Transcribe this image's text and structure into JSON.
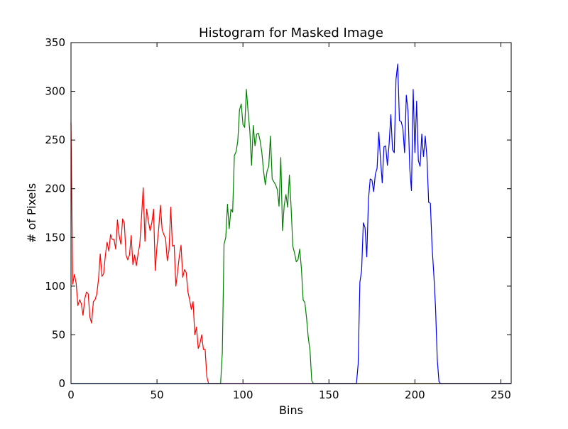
{
  "chart_data": {
    "type": "line",
    "title": "Histogram for Masked Image",
    "xlabel": "Bins",
    "ylabel": "# of Pixels",
    "xlim": [
      0,
      256
    ],
    "ylim": [
      0,
      350
    ],
    "xticks": [
      0,
      50,
      100,
      150,
      200,
      250
    ],
    "yticks": [
      0,
      50,
      100,
      150,
      200,
      250,
      300,
      350
    ],
    "grid": false,
    "series": [
      {
        "color": "#ff0000",
        "x": [
          0,
          1,
          2,
          3,
          4,
          5,
          6,
          7,
          8,
          9,
          10,
          11,
          12,
          13,
          14,
          15,
          16,
          17,
          18,
          19,
          20,
          21,
          22,
          23,
          24,
          25,
          26,
          27,
          28,
          29,
          30,
          31,
          32,
          33,
          34,
          35,
          36,
          37,
          38,
          39,
          40,
          41,
          42,
          43,
          44,
          45,
          46,
          47,
          48,
          49,
          50,
          51,
          52,
          53,
          54,
          55,
          56,
          57,
          58,
          59,
          60,
          61,
          62,
          63,
          64,
          65,
          66,
          67,
          68,
          69,
          70,
          71,
          72,
          73,
          74,
          75,
          76,
          77,
          78,
          79,
          80,
          81,
          82,
          83,
          86,
          90,
          100,
          150,
          200,
          256
        ],
        "values": [
          268,
          102,
          112,
          103,
          80,
          86,
          82,
          70,
          87,
          94,
          92,
          68,
          62,
          84,
          86,
          92,
          107,
          133,
          110,
          113,
          132,
          145,
          136,
          153,
          148,
          148,
          138,
          168,
          152,
          143,
          169,
          165,
          132,
          127,
          132,
          152,
          122,
          132,
          121,
          133,
          143,
          171,
          201,
          146,
          179,
          167,
          157,
          165,
          179,
          116,
          141,
          159,
          183,
          158,
          153,
          149,
          126,
          137,
          181,
          141,
          142,
          100,
          115,
          131,
          142,
          109,
          117,
          114,
          94,
          86,
          76,
          84,
          50,
          58,
          36,
          41,
          50,
          35,
          35,
          7,
          0,
          0,
          0,
          0,
          0,
          0,
          0,
          0,
          0,
          0
        ]
      },
      {
        "color": "#008000",
        "x": [
          0,
          50,
          84,
          86,
          87,
          88,
          89,
          90,
          91,
          92,
          93,
          94,
          95,
          96,
          97,
          98,
          99,
          100,
          101,
          102,
          103,
          104,
          105,
          106,
          107,
          108,
          109,
          110,
          111,
          112,
          113,
          114,
          115,
          116,
          117,
          118,
          119,
          120,
          121,
          122,
          123,
          124,
          125,
          126,
          127,
          128,
          129,
          130,
          131,
          132,
          133,
          134,
          135,
          136,
          137,
          138,
          139,
          140,
          141,
          142,
          143,
          150,
          200,
          256
        ],
        "values": [
          0,
          0,
          0,
          0,
          0,
          32,
          143,
          150,
          184,
          159,
          179,
          176,
          234,
          238,
          249,
          281,
          287,
          266,
          263,
          302,
          279,
          259,
          224,
          265,
          244,
          256,
          257,
          249,
          237,
          218,
          204,
          218,
          223,
          254,
          210,
          207,
          204,
          199,
          182,
          232,
          157,
          183,
          194,
          181,
          214,
          181,
          141,
          134,
          125,
          127,
          138,
          118,
          86,
          83,
          67,
          47,
          34,
          3,
          0,
          0,
          0,
          0,
          0,
          0
        ]
      },
      {
        "color": "#0000ff",
        "x": [
          0,
          100,
          150,
          163,
          165,
          166,
          167,
          168,
          169,
          170,
          171,
          172,
          173,
          174,
          175,
          176,
          177,
          178,
          179,
          180,
          181,
          182,
          183,
          184,
          185,
          186,
          187,
          188,
          189,
          190,
          191,
          192,
          193,
          194,
          195,
          196,
          197,
          198,
          199,
          200,
          201,
          202,
          203,
          204,
          205,
          206,
          207,
          208,
          209,
          210,
          211,
          212,
          213,
          214,
          215,
          220,
          256
        ],
        "values": [
          0,
          0,
          0,
          0,
          0,
          0,
          20,
          104,
          116,
          165,
          160,
          130,
          189,
          210,
          209,
          197,
          215,
          221,
          258,
          230,
          206,
          243,
          244,
          224,
          246,
          276,
          240,
          237,
          312,
          328,
          270,
          269,
          262,
          237,
          296,
          280,
          221,
          198,
          302,
          237,
          290,
          229,
          223,
          256,
          233,
          254,
          232,
          186,
          185,
          140,
          112,
          78,
          25,
          2,
          0,
          0,
          0
        ]
      }
    ]
  }
}
